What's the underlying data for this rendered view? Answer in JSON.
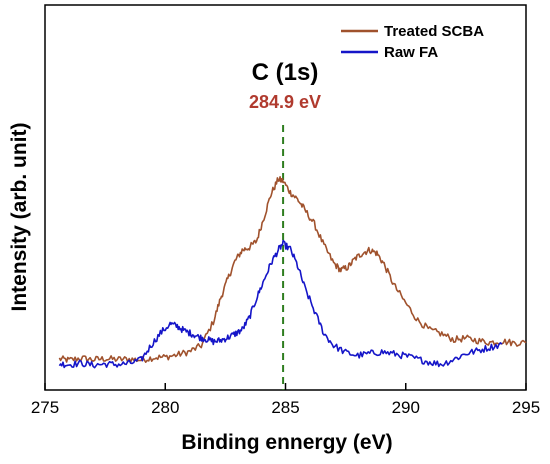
{
  "chart_data": {
    "type": "line",
    "title": "",
    "xlabel": "Binding ennergy (eV)",
    "ylabel": "Intensity (arb. unit)",
    "xlim": [
      275,
      295
    ],
    "ylim": [
      0,
      100
    ],
    "y_ticks_shown": false,
    "x_ticks": [
      275,
      280,
      285,
      290,
      295
    ],
    "x_tick_labels": [
      "275",
      "280",
      "285",
      "290",
      "295"
    ],
    "legend_position": "top-right",
    "annotations": {
      "peak_title": "C (1s)",
      "peak_value": "284.9 eV",
      "peak_x": 284.9
    },
    "series": [
      {
        "name": "Treated SCBA",
        "color": "#a0522d",
        "points": [
          [
            275.6,
            5.1
          ],
          [
            276.0,
            4.6
          ],
          [
            276.5,
            5.4
          ],
          [
            277.0,
            4.8
          ],
          [
            277.5,
            5.2
          ],
          [
            278.0,
            4.9
          ],
          [
            278.5,
            5.0
          ],
          [
            279.0,
            4.7
          ],
          [
            279.5,
            5.6
          ],
          [
            280.0,
            5.8
          ],
          [
            280.5,
            6.7
          ],
          [
            281.0,
            7.9
          ],
          [
            281.5,
            10.3
          ],
          [
            282.0,
            19.5
          ],
          [
            282.3,
            28.7
          ],
          [
            282.6,
            36.2
          ],
          [
            282.9,
            43.1
          ],
          [
            283.2,
            47.4
          ],
          [
            283.5,
            48.5
          ],
          [
            283.8,
            51.0
          ],
          [
            284.1,
            60.1
          ],
          [
            284.4,
            69.3
          ],
          [
            284.7,
            75.0
          ],
          [
            284.9,
            74.3
          ],
          [
            285.2,
            69.9
          ],
          [
            285.5,
            67.2
          ],
          [
            285.8,
            63.2
          ],
          [
            286.2,
            57.5
          ],
          [
            286.6,
            49.2
          ],
          [
            287.0,
            42.4
          ],
          [
            287.3,
            39.6
          ],
          [
            287.6,
            40.8
          ],
          [
            287.9,
            44.1
          ],
          [
            288.2,
            46.3
          ],
          [
            288.5,
            47.5
          ],
          [
            288.8,
            46.2
          ],
          [
            289.1,
            41.9
          ],
          [
            289.5,
            34.0
          ],
          [
            290.0,
            26.8
          ],
          [
            290.5,
            20.1
          ],
          [
            291.0,
            16.3
          ],
          [
            291.5,
            14.8
          ],
          [
            292.0,
            12.6
          ],
          [
            292.5,
            13.1
          ],
          [
            293.0,
            12.2
          ],
          [
            293.5,
            11.5
          ],
          [
            294.0,
            12.0
          ],
          [
            294.5,
            11.3
          ],
          [
            295.0,
            11.4
          ]
        ]
      },
      {
        "name": "Raw FA",
        "color": "#1515c8",
        "points": [
          [
            275.6,
            3.2
          ],
          [
            276.0,
            2.9
          ],
          [
            276.5,
            3.4
          ],
          [
            277.0,
            2.7
          ],
          [
            277.5,
            3.1
          ],
          [
            278.0,
            2.9
          ],
          [
            278.5,
            3.3
          ],
          [
            279.0,
            4.7
          ],
          [
            279.4,
            10.2
          ],
          [
            279.8,
            15.1
          ],
          [
            280.2,
            18.7
          ],
          [
            280.5,
            17.8
          ],
          [
            280.8,
            16.0
          ],
          [
            281.1,
            14.9
          ],
          [
            281.4,
            13.6
          ],
          [
            281.7,
            12.8
          ],
          [
            282.0,
            11.8
          ],
          [
            282.3,
            12.3
          ],
          [
            282.6,
            13.4
          ],
          [
            282.9,
            14.8
          ],
          [
            283.2,
            16.5
          ],
          [
            283.5,
            21.2
          ],
          [
            283.8,
            28.7
          ],
          [
            284.1,
            35.6
          ],
          [
            284.4,
            42.4
          ],
          [
            284.7,
            47.5
          ],
          [
            284.9,
            49.9
          ],
          [
            285.2,
            47.8
          ],
          [
            285.5,
            41.4
          ],
          [
            285.8,
            32.9
          ],
          [
            286.2,
            23.7
          ],
          [
            286.6,
            15.0
          ],
          [
            287.0,
            10.3
          ],
          [
            287.5,
            7.6
          ],
          [
            288.0,
            6.4
          ],
          [
            288.5,
            7.2
          ],
          [
            289.0,
            7.8
          ],
          [
            289.5,
            7.1
          ],
          [
            290.0,
            6.2
          ],
          [
            290.5,
            5.0
          ],
          [
            291.0,
            3.8
          ],
          [
            291.5,
            3.0
          ],
          [
            292.0,
            4.9
          ],
          [
            292.5,
            7.2
          ],
          [
            293.0,
            8.3
          ],
          [
            293.5,
            9.6
          ],
          [
            294.0,
            10.8
          ]
        ]
      }
    ]
  }
}
